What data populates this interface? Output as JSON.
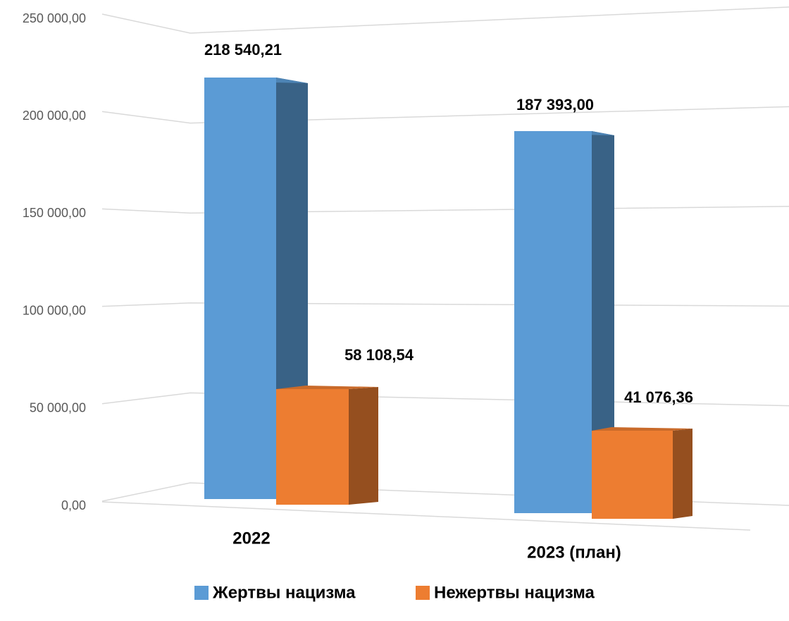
{
  "chart_data": {
    "type": "bar3d",
    "categories": [
      "2022",
      "2023 (план)"
    ],
    "series": [
      {
        "name": "Жертвы нацизма",
        "color": "#5b9bd5",
        "values": [
          218540.21,
          187393
        ],
        "value_labels": [
          "218 540,21",
          "187 393,00"
        ]
      },
      {
        "name": "Нежертвы нацизма",
        "color": "#ed7d31",
        "values": [
          58108.54,
          41076.36
        ],
        "value_labels": [
          "58 108,54",
          "41 076,36"
        ]
      }
    ],
    "ylim": [
      0,
      250000
    ],
    "yticks": [
      {
        "value": 0,
        "label": "0,00"
      },
      {
        "value": 50000,
        "label": "50 000,00"
      },
      {
        "value": 100000,
        "label": "100 000,00"
      },
      {
        "value": 150000,
        "label": "150 000,00"
      },
      {
        "value": 200000,
        "label": "200 000,00"
      },
      {
        "value": 250000,
        "label": "250 000,00"
      }
    ],
    "grid": true
  }
}
